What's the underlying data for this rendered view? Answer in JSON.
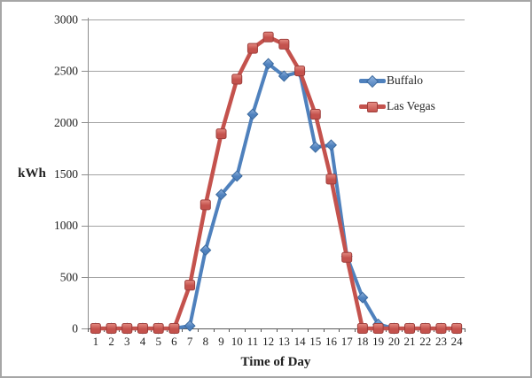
{
  "figure": {
    "background": "#ffffff",
    "border_color": "#a6a6a6"
  },
  "chart_data": {
    "type": "line",
    "x": [
      1,
      2,
      3,
      4,
      5,
      6,
      7,
      8,
      9,
      10,
      11,
      12,
      13,
      14,
      15,
      16,
      17,
      18,
      19,
      20,
      21,
      22,
      23,
      24
    ],
    "xlabel": "Time of Day",
    "ylabel": "kWh",
    "ylim": [
      0,
      3000
    ],
    "ytick_step": 500,
    "yticks": [
      0,
      500,
      1000,
      1500,
      2000,
      2500,
      3000
    ],
    "grid": true,
    "legend_position": "right-center",
    "series": [
      {
        "name": "Buffalo",
        "marker": "diamond",
        "color": "#4F81BD",
        "color_light": "#8FB2DE",
        "color_dark": "#3A699E",
        "values": [
          0,
          0,
          0,
          0,
          0,
          0,
          25,
          760,
          1300,
          1480,
          2080,
          2570,
          2450,
          2490,
          1760,
          1780,
          700,
          300,
          40,
          0,
          0,
          0,
          0,
          0
        ]
      },
      {
        "name": "Las Vegas",
        "marker": "square",
        "color": "#C4524D",
        "color_light": "#E58B82",
        "color_dark": "#9E3E3B",
        "values": [
          0,
          0,
          0,
          0,
          0,
          0,
          420,
          1200,
          1890,
          2420,
          2720,
          2830,
          2760,
          2500,
          2080,
          1450,
          690,
          0,
          0,
          0,
          0,
          0,
          0,
          0
        ]
      }
    ],
    "style": {
      "gridline_color": "#a3a3a3",
      "y_axis_color": "#8c8c8c",
      "x_axis_color": "#595959",
      "tick_label_color": "#1f1f1f"
    }
  }
}
